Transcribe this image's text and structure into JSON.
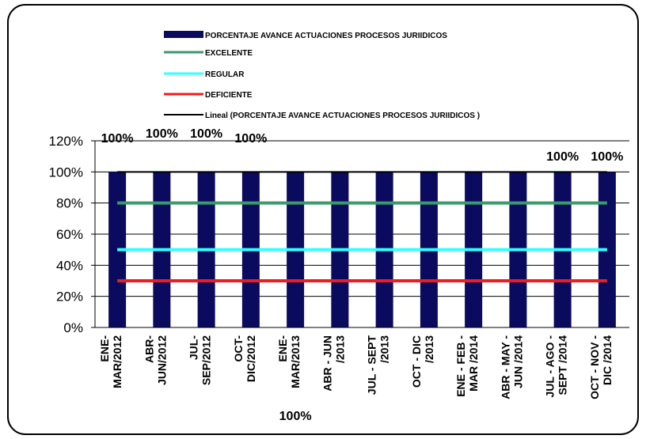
{
  "chart_data": {
    "type": "bar",
    "title": "",
    "xlabel": "",
    "ylabel": "",
    "ylim": [
      0,
      1.2
    ],
    "yticks": [
      0,
      0.2,
      0.4,
      0.6,
      0.8,
      1.0,
      1.2
    ],
    "ytick_labels": [
      "0%",
      "20%",
      "40%",
      "60%",
      "80%",
      "100%",
      "120%"
    ],
    "grid": "horizontal",
    "legend_position": "top",
    "categories": [
      [
        "ENE-",
        "MAR/2012"
      ],
      [
        "ABR-",
        "JUN/2012"
      ],
      [
        "JUL-",
        "SEP/2012"
      ],
      [
        "OCT-",
        "DIC/2012"
      ],
      [
        "ENE-",
        "MAR/2013"
      ],
      [
        "ABR - JUN",
        "/2013"
      ],
      [
        "JUL - SEPT",
        "/2013"
      ],
      [
        "OCT - DIC",
        "/2013"
      ],
      [
        "ENE - FEB -",
        "MAR /2014"
      ],
      [
        "ABR - MAY -",
        "JUN /2014"
      ],
      [
        "JUL - AGO -",
        "SEPT /2014"
      ],
      [
        "OCT - NOV -",
        "DIC /2014"
      ]
    ],
    "series": [
      {
        "name": "PORCENTAJE AVANCE ACTUACIONES PROCESOS JURIIDICOS",
        "kind": "bar",
        "color": "#0a0a5e",
        "values": [
          1,
          1,
          1,
          1,
          1,
          1,
          1,
          1,
          1,
          1,
          1,
          1
        ]
      },
      {
        "name": "EXCELENTE",
        "kind": "line",
        "color": "#3a9a6a",
        "value": 0.8
      },
      {
        "name": "REGULAR",
        "kind": "line",
        "color": "#33ffff",
        "value": 0.5
      },
      {
        "name": "DEFICIENTE",
        "kind": "line",
        "color": "#ee1c1c",
        "value": 0.3
      },
      {
        "name": "Lineal (PORCENTAJE AVANCE ACTUACIONES PROCESOS JURIIDICOS )",
        "kind": "trend",
        "color": "#000000",
        "value": 1.0
      }
    ],
    "data_labels": [
      {
        "category_index": 0,
        "text": "100%"
      },
      {
        "category_index": 1,
        "text": "100%"
      },
      {
        "category_index": 2,
        "text": "100%"
      },
      {
        "category_index": 3,
        "text": "100%"
      },
      {
        "category_index": 4,
        "text": "100%"
      },
      {
        "category_index": 10,
        "text": "100%"
      },
      {
        "category_index": 11,
        "text": "100%"
      }
    ]
  }
}
